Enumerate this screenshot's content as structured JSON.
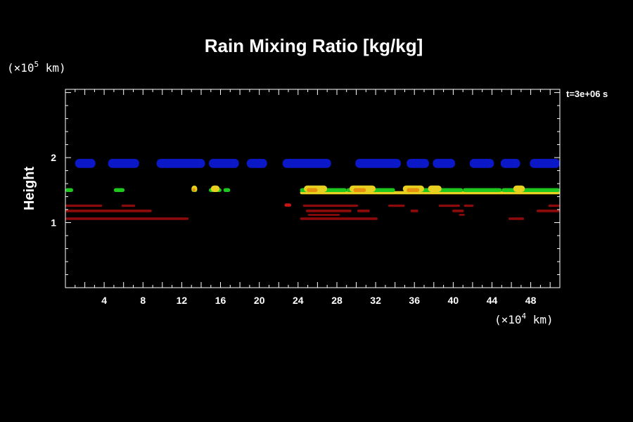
{
  "chart_data": {
    "type": "heatmap",
    "title": "Rain Mixing Ratio [kg/kg]",
    "ylabel": "Height",
    "xlabel": "",
    "time_label": "t=3e+06 s",
    "x_scale": {
      "prefix": "(×10",
      "exponent": "4",
      "suffix": " km)"
    },
    "y_scale": {
      "prefix": "(×10",
      "exponent": "5",
      "suffix": " km)"
    },
    "xlim": [
      0,
      51
    ],
    "ylim": [
      0,
      3.05
    ],
    "x_ticks": [
      4,
      8,
      12,
      16,
      20,
      24,
      28,
      32,
      36,
      40,
      44,
      48
    ],
    "x_tick_labels": [
      "4",
      "8",
      "12",
      "16",
      "20",
      "24",
      "28",
      "32",
      "36",
      "40",
      "44",
      "48"
    ],
    "y_ticks": [
      1,
      2
    ],
    "y_tick_labels": [
      "1",
      "2"
    ],
    "colors": {
      "blue": "#0a18c8",
      "green": "#1ec81e",
      "yellow": "#e8d020",
      "orange": "#e89010",
      "darkred": "#8c0a0a",
      "red": "#c81414"
    },
    "features": [
      {
        "name": "upper cloud band",
        "color": "blue",
        "y": 1.91,
        "thickness": 0.14,
        "segments": [
          [
            1.0,
            3.1
          ],
          [
            4.4,
            7.6
          ],
          [
            9.4,
            14.4
          ],
          [
            14.8,
            17.9
          ],
          [
            18.7,
            20.8
          ],
          [
            22.4,
            27.4
          ],
          [
            29.9,
            34.6
          ],
          [
            35.2,
            37.5
          ],
          [
            37.9,
            40.2
          ],
          [
            41.7,
            44.2
          ],
          [
            44.9,
            46.9
          ],
          [
            47.9,
            51.0
          ]
        ]
      },
      {
        "name": "mid rain layer base",
        "color": "yellow",
        "y": 1.46,
        "thickness": 0.05,
        "segments": [
          [
            24.2,
            51.0
          ]
        ]
      },
      {
        "name": "mid rain layer green",
        "color": "green",
        "y": 1.5,
        "thickness": 0.06,
        "segments": [
          [
            0.0,
            0.8
          ],
          [
            5.0,
            6.1
          ],
          [
            13.0,
            13.6
          ],
          [
            14.8,
            16.1
          ],
          [
            16.3,
            17.0
          ],
          [
            24.2,
            29.0
          ],
          [
            29.0,
            34.0
          ],
          [
            35.0,
            41.0
          ],
          [
            41.0,
            45.0
          ],
          [
            45.0,
            51.0
          ]
        ]
      },
      {
        "name": "mid rain blobs",
        "color": "yellow",
        "y": 1.52,
        "thickness": 0.1,
        "segments": [
          [
            13.0,
            13.6
          ],
          [
            15.0,
            15.9
          ],
          [
            24.6,
            27.0
          ],
          [
            29.3,
            32.0
          ],
          [
            34.8,
            37.0
          ],
          [
            37.4,
            38.8
          ],
          [
            46.2,
            47.4
          ]
        ]
      },
      {
        "name": "mid rain cores",
        "color": "orange",
        "y": 1.5,
        "thickness": 0.06,
        "segments": [
          [
            13.1,
            13.4
          ],
          [
            24.9,
            26.0
          ],
          [
            29.7,
            31.0
          ],
          [
            35.2,
            36.5
          ]
        ]
      },
      {
        "name": "lower rain band 1",
        "color": "darkred",
        "y": 1.26,
        "thickness": 0.035,
        "segments": [
          [
            0.0,
            3.8
          ],
          [
            5.8,
            7.2
          ],
          [
            24.5,
            30.2
          ],
          [
            33.3,
            35.0
          ],
          [
            38.5,
            40.7
          ],
          [
            41.1,
            42.1
          ],
          [
            49.8,
            51.0
          ]
        ]
      },
      {
        "name": "lower rain band 2",
        "color": "darkred",
        "y": 1.18,
        "thickness": 0.04,
        "segments": [
          [
            0.0,
            8.9
          ],
          [
            24.8,
            29.5
          ],
          [
            30.1,
            31.4
          ],
          [
            35.6,
            36.4
          ],
          [
            39.9,
            41.1
          ],
          [
            48.6,
            51.0
          ]
        ]
      },
      {
        "name": "lower rain band 3",
        "color": "darkred",
        "y": 1.06,
        "thickness": 0.04,
        "segments": [
          [
            0.0,
            12.7
          ],
          [
            24.2,
            32.2
          ],
          [
            45.7,
            47.3
          ]
        ]
      },
      {
        "name": "lower rain band 4",
        "color": "darkred",
        "y": 1.12,
        "thickness": 0.03,
        "segments": [
          [
            25.0,
            28.3
          ],
          [
            40.6,
            41.2
          ]
        ]
      },
      {
        "name": "lower rain dot",
        "color": "red",
        "y": 1.27,
        "thickness": 0.05,
        "segments": [
          [
            22.6,
            23.3
          ]
        ]
      }
    ]
  }
}
